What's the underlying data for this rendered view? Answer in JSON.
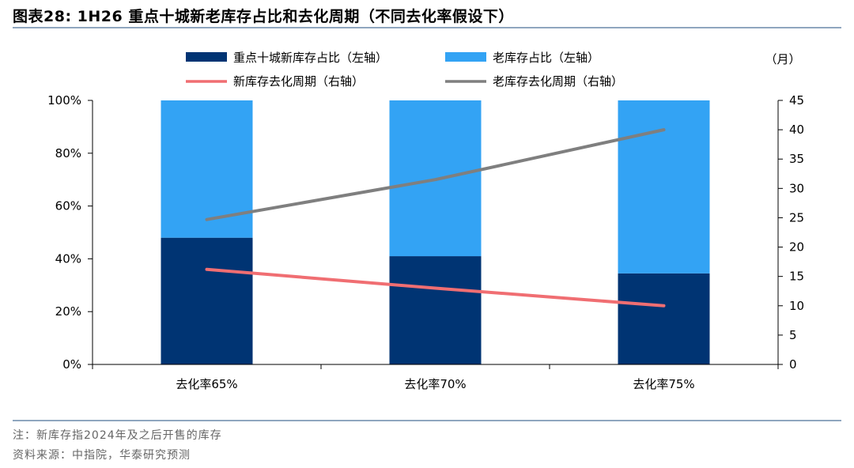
{
  "title": "图表28:   1H26 重点十城新老库存占比和去化周期（不同去化率假设下）",
  "notes": {
    "note": "注：新库存指2024年及之后开售的库存",
    "source": "资料来源：中指院，华泰研究预测"
  },
  "chart_data": {
    "type": "bar",
    "stacked": true,
    "categories": [
      "去化率65%",
      "去化率70%",
      "去化率75%"
    ],
    "bar_series": [
      {
        "name": "重点十城新库存占比（左轴）",
        "axis": "left",
        "color": "#003473",
        "values": [
          48,
          41,
          34.5
        ]
      },
      {
        "name": "老库存占比（左轴）",
        "axis": "left",
        "color": "#33a3f4",
        "values": [
          52,
          59,
          65.5
        ]
      }
    ],
    "line_series": [
      {
        "name": "新库存去化周期（右轴）",
        "axis": "right",
        "color": "#f06e72",
        "values": [
          16.2,
          13,
          10
        ]
      },
      {
        "name": "老库存去化周期（右轴）",
        "axis": "right",
        "color": "#7f7f7f",
        "values": [
          24.7,
          31.5,
          40
        ]
      }
    ],
    "left_axis": {
      "min": 0,
      "max": 100,
      "ticks": [
        "0%",
        "20%",
        "40%",
        "60%",
        "80%",
        "100%"
      ]
    },
    "right_axis": {
      "min": 0,
      "max": 45,
      "unit": "（月）",
      "ticks": [
        "0",
        "5",
        "10",
        "15",
        "20",
        "25",
        "30",
        "35",
        "40",
        "45"
      ]
    },
    "legend_position": "top",
    "grid": false
  }
}
